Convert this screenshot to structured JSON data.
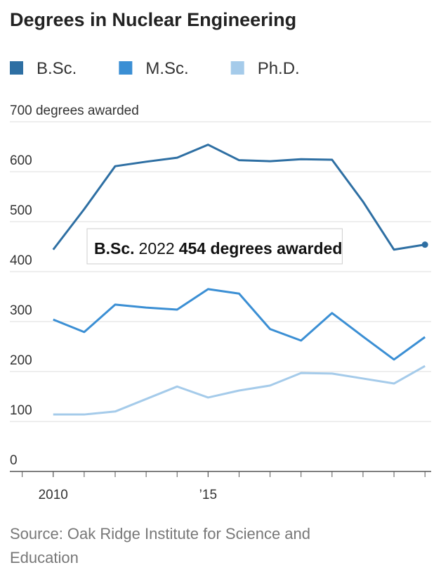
{
  "chart_data": {
    "type": "line",
    "title": "Degrees in Nuclear Engineering",
    "x": [
      2010,
      2011,
      2012,
      2013,
      2014,
      2015,
      2016,
      2017,
      2018,
      2019,
      2020,
      2021,
      2022
    ],
    "series": [
      {
        "name": "B.Sc.",
        "color": "#2e6fa3",
        "values": [
          444,
          525,
          611,
          620,
          628,
          654,
          623,
          621,
          625,
          624,
          540,
          444,
          454
        ]
      },
      {
        "name": "M.Sc.",
        "color": "#3b8fd4",
        "values": [
          304,
          279,
          334,
          328,
          324,
          365,
          356,
          285,
          262,
          317,
          270,
          224,
          269
        ]
      },
      {
        "name": "Ph.D.",
        "color": "#a5cbea",
        "values": [
          114,
          114,
          120,
          145,
          170,
          148,
          162,
          172,
          197,
          196,
          186,
          176,
          211
        ]
      }
    ],
    "xlim": [
      2008.6,
      2022.2
    ],
    "xticks": [
      2010,
      {
        "value": 2015,
        "label": "’15"
      }
    ],
    "ylim": [
      0,
      700
    ],
    "yticks": [
      0,
      100,
      200,
      300,
      400,
      500,
      600,
      {
        "value": 700,
        "label": "700 degrees awarded"
      }
    ],
    "grid": true,
    "annotation": "454 degrees awarded",
    "source": "Source: Oak Ridge Institute for Science and Education"
  }
}
